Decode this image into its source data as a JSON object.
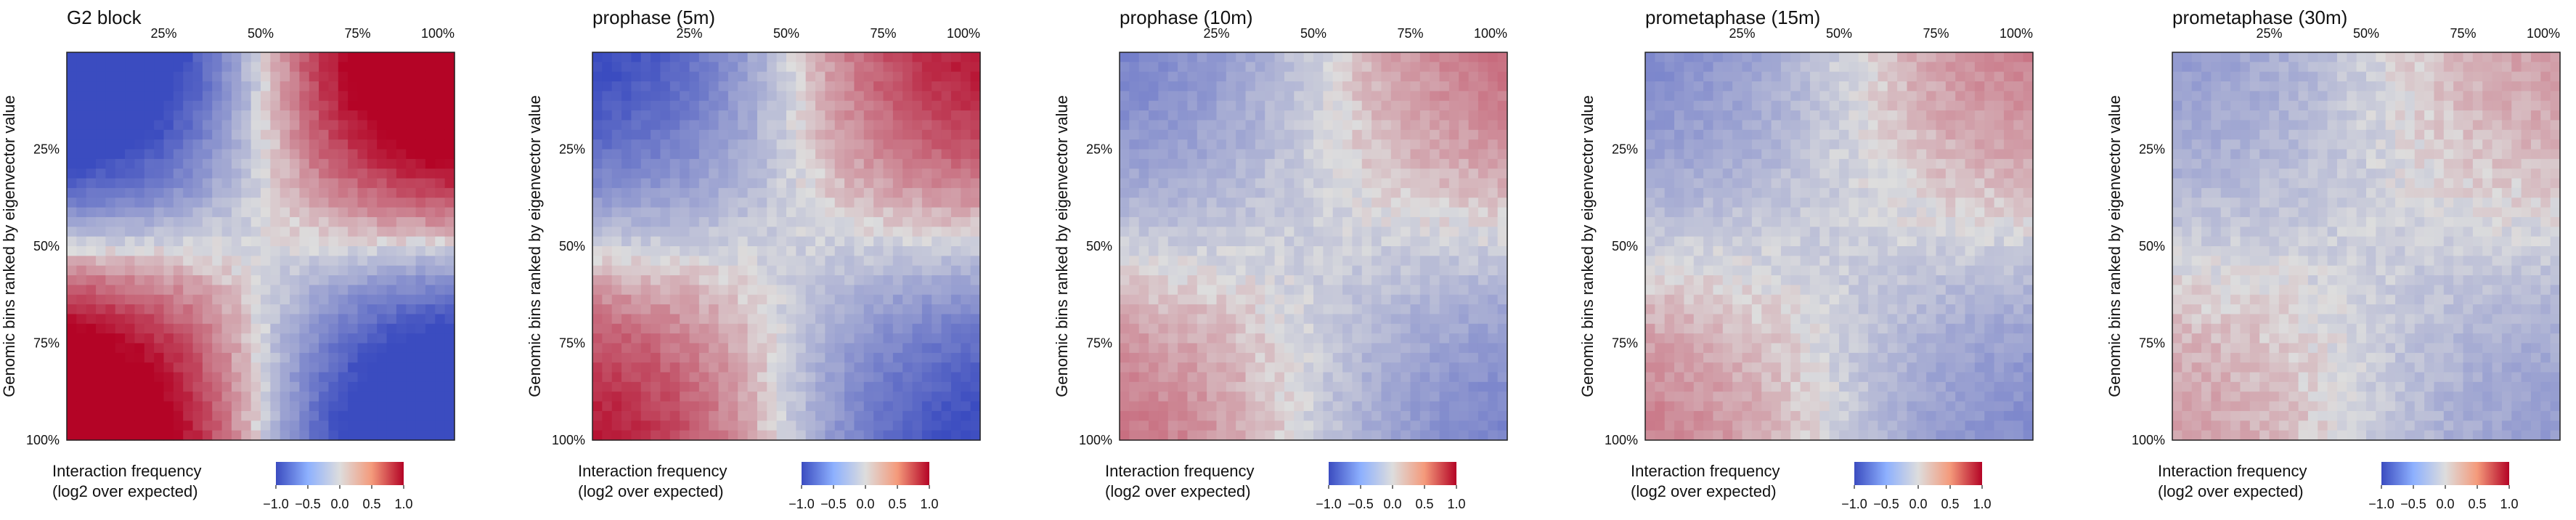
{
  "chart_data": [
    {
      "type": "heatmap",
      "title": "G2 block",
      "ylabel": "Genomic bins ranked by eigenvector value",
      "x_tick_labels": [
        "25%",
        "50%",
        "75%",
        "100%"
      ],
      "y_tick_labels": [
        "25%",
        "50%",
        "75%",
        "100%"
      ],
      "grid_size": 40,
      "strength": 1.0,
      "colorbar": {
        "title_line1": "Interaction frequency",
        "title_line2": "(log2 over expected)",
        "tick_labels": [
          "−1.0",
          "−0.5",
          "0.0",
          "0.5",
          "1.0"
        ],
        "range": [
          -1.0,
          1.0
        ]
      }
    },
    {
      "type": "heatmap",
      "title": "prophase (5m)",
      "ylabel": "Genomic bins ranked by eigenvector value",
      "x_tick_labels": [
        "25%",
        "50%",
        "75%",
        "100%"
      ],
      "y_tick_labels": [
        "25%",
        "50%",
        "75%",
        "100%"
      ],
      "grid_size": 40,
      "strength": 0.55,
      "colorbar": {
        "title_line1": "Interaction frequency",
        "title_line2": "(log2 over expected)",
        "tick_labels": [
          "−1.0",
          "−0.5",
          "0.0",
          "0.5",
          "1.0"
        ],
        "range": [
          -1.0,
          1.0
        ]
      }
    },
    {
      "type": "heatmap",
      "title": "prophase (10m)",
      "ylabel": "Genomic bins ranked by eigenvector value",
      "x_tick_labels": [
        "25%",
        "50%",
        "75%",
        "100%"
      ],
      "y_tick_labels": [
        "25%",
        "50%",
        "75%",
        "100%"
      ],
      "grid_size": 40,
      "strength": 0.28,
      "colorbar": {
        "title_line1": "Interaction frequency",
        "title_line2": "(log2 over expected)",
        "tick_labels": [
          "−1.0",
          "−0.5",
          "0.0",
          "0.5",
          "1.0"
        ],
        "range": [
          -1.0,
          1.0
        ]
      }
    },
    {
      "type": "heatmap",
      "title": "prometaphase (15m)",
      "ylabel": "Genomic bins ranked by eigenvector value",
      "x_tick_labels": [
        "25%",
        "50%",
        "75%",
        "100%"
      ],
      "y_tick_labels": [
        "25%",
        "50%",
        "75%",
        "100%"
      ],
      "grid_size": 40,
      "strength": 0.25,
      "colorbar": {
        "title_line1": "Interaction frequency",
        "title_line2": "(log2 over expected)",
        "tick_labels": [
          "−1.0",
          "−0.5",
          "0.0",
          "0.5",
          "1.0"
        ],
        "range": [
          -1.0,
          1.0
        ]
      }
    },
    {
      "type": "heatmap",
      "title": "prometaphase (30m)",
      "ylabel": "Genomic bins ranked by eigenvector value",
      "x_tick_labels": [
        "25%",
        "50%",
        "75%",
        "100%"
      ],
      "y_tick_labels": [
        "25%",
        "50%",
        "75%",
        "100%"
      ],
      "grid_size": 40,
      "strength": 0.18,
      "colorbar": {
        "title_line1": "Interaction frequency",
        "title_line2": "(log2 over expected)",
        "tick_labels": [
          "−1.0",
          "−0.5",
          "0.0",
          "0.5",
          "1.0"
        ],
        "range": [
          -1.0,
          1.0
        ]
      }
    }
  ],
  "colors": {
    "low": "#3b4cc0",
    "mid": "#dddddd",
    "high": "#b40426"
  }
}
